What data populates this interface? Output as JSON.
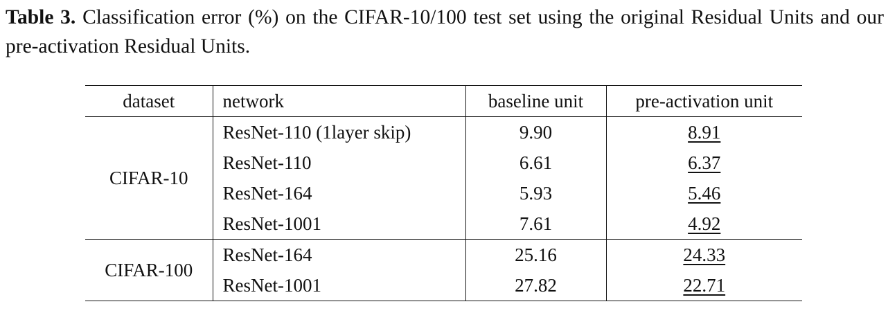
{
  "caption": {
    "label": "Table 3.",
    "text": "Classification error (%) on the CIFAR-10/100 test set using the original Residual Units and our pre-activation Residual Units."
  },
  "table": {
    "header": [
      "dataset",
      "network",
      "baseline unit",
      "pre-activation unit"
    ],
    "groups": [
      {
        "dataset": "CIFAR-10",
        "rows": [
          [
            "ResNet-110 (1layer skip)",
            "9.90",
            "8.91"
          ],
          [
            "ResNet-110",
            "6.61",
            "6.37"
          ],
          [
            "ResNet-164",
            "5.93",
            "5.46"
          ],
          [
            "ResNet-1001",
            "7.61",
            "4.92"
          ]
        ]
      },
      {
        "dataset": "CIFAR-100",
        "rows": [
          [
            "ResNet-164",
            "25.16",
            "24.33"
          ],
          [
            "ResNet-1001",
            "27.82",
            "22.71"
          ]
        ]
      }
    ]
  }
}
